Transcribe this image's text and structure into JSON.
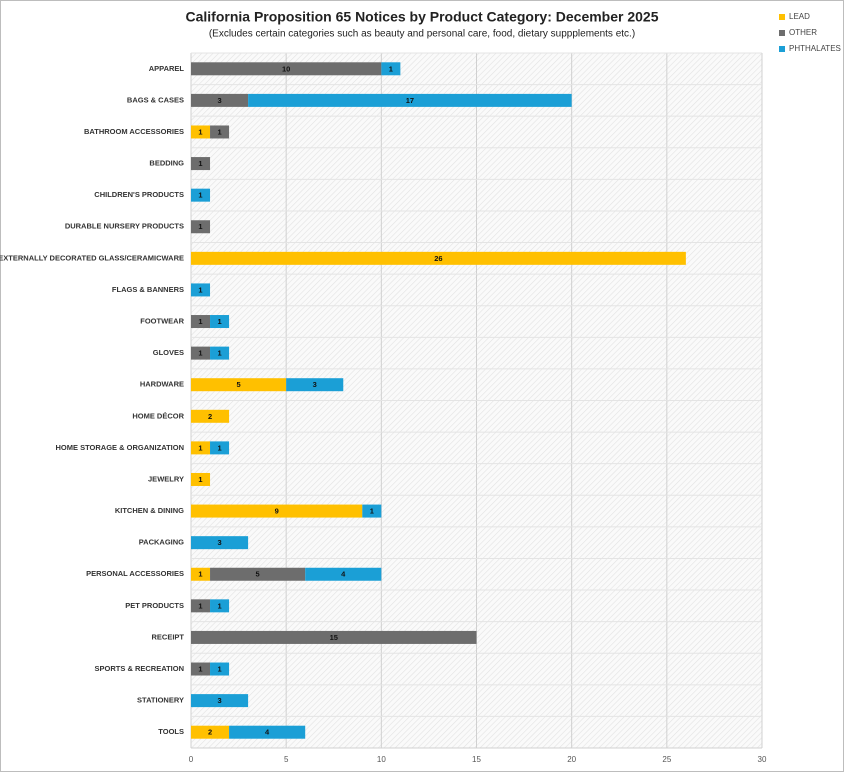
{
  "chart_data": {
    "type": "bar",
    "orientation": "horizontal",
    "stacked": true,
    "title": "California Proposition 65 Notices by Product Category: December 2025",
    "subtitle": "(Excludes certain categories such as beauty and personal care, food, dietary suppplements etc.)",
    "categories": [
      "APPAREL",
      "BAGS & CASES",
      "BATHROOM ACCESSORIES",
      "BEDDING",
      "CHILDREN'S PRODUCTS",
      "DURABLE NURSERY PRODUCTS",
      "EXTERNALLY DECORATED GLASS/CERAMICWARE",
      "FLAGS & BANNERS",
      "FOOTWEAR",
      "GLOVES",
      "HARDWARE",
      "HOME DÉCOR",
      "HOME STORAGE & ORGANIZATION",
      "JEWELRY",
      "KITCHEN & DINING",
      "PACKAGING",
      "PERSONAL ACCESSORIES",
      "PET PRODUCTS",
      "RECEIPT",
      "SPORTS & RECREATION",
      "STATIONERY",
      "TOOLS"
    ],
    "series": [
      {
        "name": "LEAD",
        "color": "#ffc000",
        "values": [
          null,
          null,
          1,
          null,
          null,
          null,
          26,
          null,
          null,
          null,
          5,
          2,
          1,
          1,
          9,
          null,
          1,
          null,
          null,
          null,
          null,
          2
        ]
      },
      {
        "name": "OTHER",
        "color": "#6d6d6d",
        "values": [
          10,
          3,
          1,
          1,
          null,
          1,
          null,
          null,
          1,
          1,
          null,
          null,
          null,
          null,
          null,
          null,
          5,
          1,
          15,
          1,
          null,
          null
        ]
      },
      {
        "name": "PHTHALATES",
        "color": "#1b9fd6",
        "values": [
          1,
          17,
          null,
          null,
          1,
          null,
          null,
          1,
          1,
          1,
          3,
          null,
          1,
          null,
          1,
          3,
          4,
          1,
          null,
          1,
          3,
          4
        ]
      }
    ],
    "xlim": [
      0,
      30
    ],
    "xticks": [
      0,
      5,
      10,
      15,
      20,
      25,
      30
    ],
    "grid": true,
    "legend": "top-right"
  }
}
